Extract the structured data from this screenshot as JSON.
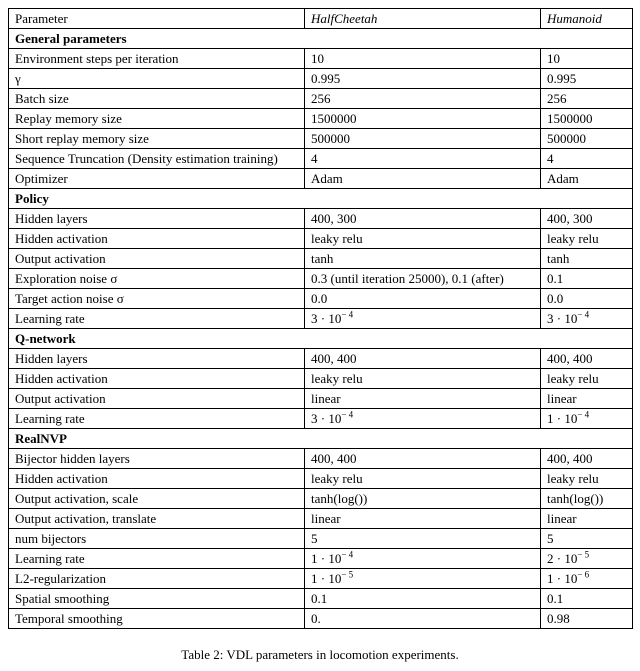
{
  "header": {
    "c0": "Parameter",
    "c1": "HalfCheetah",
    "c2": "Humanoid"
  },
  "sections": {
    "general": "General parameters",
    "policy": "Policy",
    "qnet": "Q-network",
    "realnvp": "RealNVP"
  },
  "rows": {
    "env_steps": {
      "p": "Environment steps per iteration",
      "a": "10",
      "b": "10"
    },
    "gamma": {
      "p": "γ",
      "a": "0.995",
      "b": "0.995"
    },
    "batch": {
      "p": "Batch size",
      "a": "256",
      "b": "256"
    },
    "replay": {
      "p": "Replay memory size",
      "a": "1500000",
      "b": "1500000"
    },
    "short_rep": {
      "p": "Short replay memory size",
      "a": "500000",
      "b": "500000"
    },
    "seq_trunc": {
      "p": "Sequence Truncation (Density estimation training)",
      "a": "4",
      "b": "4"
    },
    "optimizer": {
      "p": "Optimizer",
      "a": "Adam",
      "b": "Adam"
    },
    "p_hidden": {
      "p": "Hidden layers",
      "a": "400, 300",
      "b": "400, 300"
    },
    "p_hact": {
      "p": "Hidden activation",
      "a": "leaky relu",
      "b": "leaky relu"
    },
    "p_oact": {
      "p": "Output activation",
      "a": "tanh",
      "b": "tanh"
    },
    "p_expn": {
      "p": "Exploration noise σ",
      "a": "0.3 (until iteration 25000), 0.1 (after)",
      "b": "0.1"
    },
    "p_tact": {
      "p": "Target action noise σ",
      "a": "0.0",
      "b": "0.0"
    },
    "p_lr": {
      "p": "Learning rate"
    },
    "q_hidden": {
      "p": "Hidden layers",
      "a": "400, 400",
      "b": "400, 400"
    },
    "q_hact": {
      "p": "Hidden activation",
      "a": "leaky relu",
      "b": "leaky relu"
    },
    "q_oact": {
      "p": "Output activation",
      "a": "linear",
      "b": "linear"
    },
    "q_lr": {
      "p": "Learning rate"
    },
    "r_bhid": {
      "p": "Bijector hidden layers",
      "a": "400, 400",
      "b": "400, 400"
    },
    "r_hact": {
      "p": "Hidden activation",
      "a": "leaky relu",
      "b": "leaky relu"
    },
    "r_oscale": {
      "p": "Output activation, scale",
      "a": "tanh(log())",
      "b": "tanh(log())"
    },
    "r_otrans": {
      "p": "Output activation, translate",
      "a": "linear",
      "b": "linear"
    },
    "r_nbij": {
      "p": "num bijectors",
      "a": "5",
      "b": "5"
    },
    "r_lr": {
      "p": "Learning rate"
    },
    "r_l2": {
      "p": "L2-regularization"
    },
    "r_spat": {
      "p": "Spatial smoothing",
      "a": "0.1",
      "b": "0.1"
    },
    "r_temp": {
      "p": "Temporal smoothing",
      "a": "0.",
      "b": "0.98"
    }
  },
  "sci": {
    "p_lr_a": {
      "m": "3",
      "e": "4"
    },
    "p_lr_b": {
      "m": "3",
      "e": "4"
    },
    "q_lr_a": {
      "m": "3",
      "e": "4"
    },
    "q_lr_b": {
      "m": "1",
      "e": "4"
    },
    "r_lr_a": {
      "m": "1",
      "e": "4"
    },
    "r_lr_b": {
      "m": "2",
      "e": "5"
    },
    "r_l2_a": {
      "m": "1",
      "e": "5"
    },
    "r_l2_b": {
      "m": "1",
      "e": "6"
    }
  },
  "caption": "Table 2: VDL parameters in locomotion experiments."
}
